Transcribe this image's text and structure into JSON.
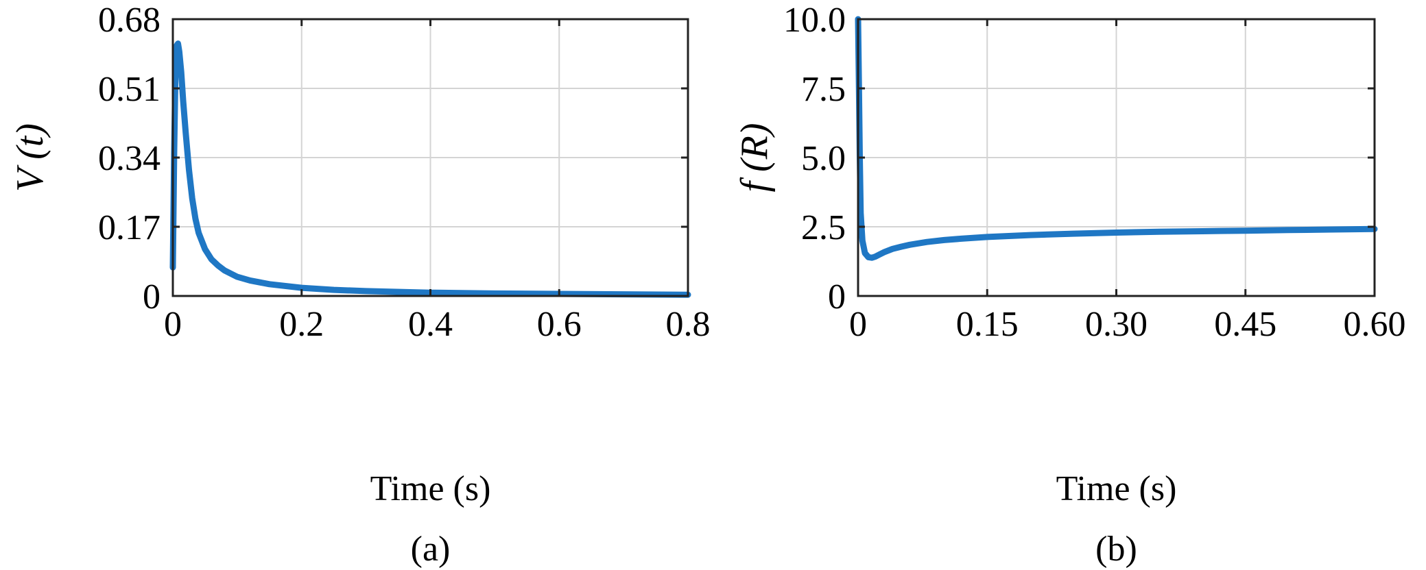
{
  "chart_data": [
    {
      "type": "line",
      "panel_label": "(a)",
      "xlabel": "Time (s)",
      "ylabel": "V (t)",
      "xlim": [
        0,
        0.8
      ],
      "ylim": [
        0,
        0.68
      ],
      "xticks": [
        0,
        0.2,
        0.4,
        0.6,
        0.8
      ],
      "xtick_labels": [
        "0",
        "0.2",
        "0.4",
        "0.6",
        "0.8"
      ],
      "yticks": [
        0,
        0.17,
        0.34,
        0.51,
        0.68
      ],
      "ytick_labels": [
        "0",
        "0.17",
        "0.34",
        "0.51",
        "0.68"
      ],
      "grid": true,
      "color": "#1f77c4",
      "series": [
        {
          "x": [
            0,
            0.002,
            0.004,
            0.006,
            0.008,
            0.01,
            0.013,
            0.016,
            0.02,
            0.025,
            0.03,
            0.035,
            0.04,
            0.05,
            0.06,
            0.07,
            0.08,
            0.1,
            0.12,
            0.15,
            0.2,
            0.25,
            0.3,
            0.4,
            0.5,
            0.6,
            0.7,
            0.8
          ],
          "y": [
            0.07,
            0.35,
            0.55,
            0.615,
            0.62,
            0.6,
            0.55,
            0.48,
            0.4,
            0.31,
            0.24,
            0.19,
            0.155,
            0.115,
            0.09,
            0.075,
            0.063,
            0.047,
            0.038,
            0.029,
            0.02,
            0.015,
            0.012,
            0.008,
            0.006,
            0.005,
            0.004,
            0.003
          ]
        }
      ]
    },
    {
      "type": "line",
      "panel_label": "(b)",
      "xlabel": "Time (s)",
      "ylabel": "f (R)",
      "xlim": [
        0,
        0.6
      ],
      "ylim": [
        0,
        10
      ],
      "xticks": [
        0,
        0.15,
        0.3,
        0.45,
        0.6
      ],
      "xtick_labels": [
        "0",
        "0.15",
        "0.30",
        "0.45",
        "0.60"
      ],
      "yticks": [
        0,
        2.5,
        5.0,
        7.5,
        10.0
      ],
      "ytick_labels": [
        "0",
        "2.5",
        "5.0",
        "7.5",
        "10.0"
      ],
      "grid": true,
      "color": "#1f77c4",
      "series": [
        {
          "x": [
            0,
            0.001,
            0.002,
            0.003,
            0.005,
            0.008,
            0.012,
            0.016,
            0.02,
            0.025,
            0.03,
            0.04,
            0.05,
            0.06,
            0.08,
            0.1,
            0.12,
            0.15,
            0.2,
            0.25,
            0.3,
            0.35,
            0.4,
            0.45,
            0.5,
            0.55,
            0.6
          ],
          "y": [
            10.0,
            7.5,
            5.0,
            3.0,
            2.0,
            1.55,
            1.4,
            1.38,
            1.42,
            1.5,
            1.58,
            1.7,
            1.78,
            1.85,
            1.95,
            2.02,
            2.07,
            2.13,
            2.2,
            2.25,
            2.29,
            2.32,
            2.34,
            2.36,
            2.38,
            2.4,
            2.42
          ]
        }
      ]
    }
  ]
}
